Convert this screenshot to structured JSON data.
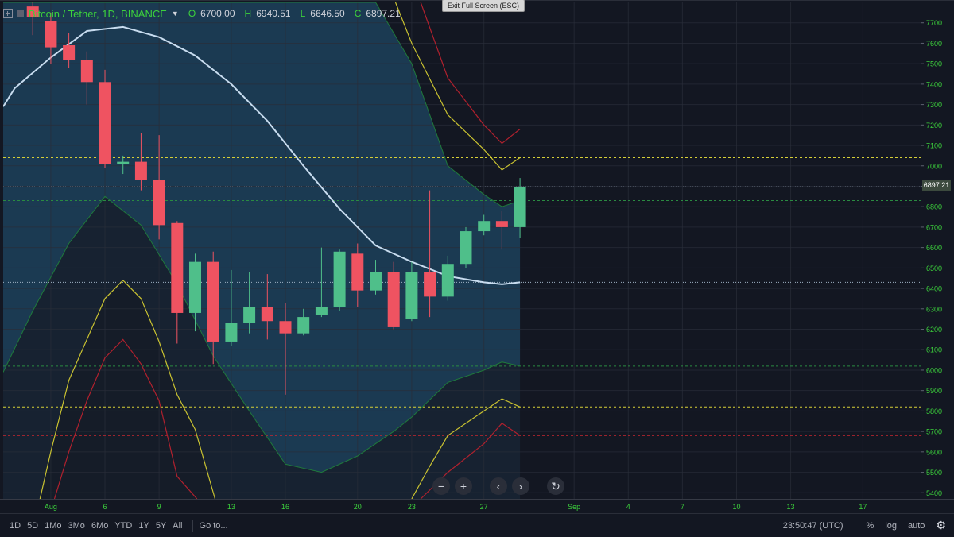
{
  "legend": {
    "symbol": "Bitcoin / Tether, 1D, BINANCE",
    "o_label": "O",
    "o_value": "6700.00",
    "h_label": "H",
    "h_value": "6940.51",
    "l_label": "L",
    "l_value": "6646.50",
    "c_label": "C",
    "c_value": "6897.21"
  },
  "esc_label": "Exit Full Screen (ESC)",
  "price_badge": "6897.21",
  "nav": {
    "zoom_out": "−",
    "zoom_in": "+",
    "back": "‹",
    "forward": "›",
    "reset": "↻"
  },
  "bottom": {
    "ranges": [
      "1D",
      "5D",
      "1Mo",
      "3Mo",
      "6Mo",
      "YTD",
      "1Y",
      "5Y",
      "All"
    ],
    "goto": "Go to...",
    "time": "23:50:47 (UTC)",
    "percent": "%",
    "log": "log",
    "auto": "auto"
  },
  "colors": {
    "background": "#131722",
    "band_fill": "#1f4763",
    "up": "#4fbf8a",
    "down": "#ef5361",
    "ma": "#c8dcef",
    "green_band": "#1f7a3b",
    "yellow_band": "#c9c231",
    "red_band": "#b0212e",
    "axis_text": "#3cd13c"
  },
  "chart_data": {
    "type": "candlestick",
    "title": "Bitcoin / Tether, 1D, BINANCE",
    "x_ticks": [
      {
        "day": 3,
        "label": "Aug"
      },
      {
        "day": 6,
        "label": "6"
      },
      {
        "day": 9,
        "label": "9"
      },
      {
        "day": 13,
        "label": "13"
      },
      {
        "day": 16,
        "label": "16"
      },
      {
        "day": 20,
        "label": "20"
      },
      {
        "day": 23,
        "label": "23"
      },
      {
        "day": 27,
        "label": "27"
      },
      {
        "day": 32,
        "label": "Sep"
      },
      {
        "day": 35,
        "label": "4"
      },
      {
        "day": 38,
        "label": "7"
      },
      {
        "day": 41,
        "label": "10"
      },
      {
        "day": 44,
        "label": "13"
      },
      {
        "day": 48,
        "label": "17"
      }
    ],
    "y_ticks": [
      5400,
      5500,
      5600,
      5700,
      5800,
      5900,
      6000,
      6100,
      6200,
      6300,
      6400,
      6500,
      6600,
      6700,
      6800,
      6900,
      7000,
      7100,
      7200,
      7300,
      7400,
      7500,
      7600,
      7700
    ],
    "ylim": [
      5370,
      7800
    ],
    "xlim": [
      0.36,
      51.2
    ],
    "candles": [
      {
        "day": 2,
        "o": 7780,
        "h": 7800,
        "l": 7640,
        "c": 7730
      },
      {
        "day": 3,
        "o": 7710,
        "h": 7750,
        "l": 7500,
        "c": 7580
      },
      {
        "day": 4,
        "o": 7590,
        "h": 7650,
        "l": 7480,
        "c": 7520
      },
      {
        "day": 5,
        "o": 7520,
        "h": 7560,
        "l": 7300,
        "c": 7410
      },
      {
        "day": 6,
        "o": 7410,
        "h": 7470,
        "l": 6990,
        "c": 7010
      },
      {
        "day": 7,
        "o": 7010,
        "h": 7050,
        "l": 6960,
        "c": 7020
      },
      {
        "day": 8,
        "o": 7020,
        "h": 7160,
        "l": 6880,
        "c": 6930
      },
      {
        "day": 9,
        "o": 6930,
        "h": 7150,
        "l": 6640,
        "c": 6710
      },
      {
        "day": 10,
        "o": 6720,
        "h": 6730,
        "l": 6130,
        "c": 6280
      },
      {
        "day": 11,
        "o": 6280,
        "h": 6570,
        "l": 6190,
        "c": 6530
      },
      {
        "day": 12,
        "o": 6530,
        "h": 6580,
        "l": 6030,
        "c": 6140
      },
      {
        "day": 13,
        "o": 6140,
        "h": 6490,
        "l": 6120,
        "c": 6230
      },
      {
        "day": 14,
        "o": 6230,
        "h": 6480,
        "l": 6180,
        "c": 6310
      },
      {
        "day": 15,
        "o": 6310,
        "h": 6470,
        "l": 6150,
        "c": 6240
      },
      {
        "day": 16,
        "o": 6240,
        "h": 6330,
        "l": 5880,
        "c": 6180
      },
      {
        "day": 17,
        "o": 6180,
        "h": 6300,
        "l": 6170,
        "c": 6260
      },
      {
        "day": 18,
        "o": 6270,
        "h": 6600,
        "l": 6260,
        "c": 6310
      },
      {
        "day": 19,
        "o": 6310,
        "h": 6590,
        "l": 6290,
        "c": 6580
      },
      {
        "day": 20,
        "o": 6570,
        "h": 6620,
        "l": 6310,
        "c": 6390
      },
      {
        "day": 21,
        "o": 6390,
        "h": 6540,
        "l": 6370,
        "c": 6480
      },
      {
        "day": 22,
        "o": 6480,
        "h": 6530,
        "l": 6200,
        "c": 6210
      },
      {
        "day": 23,
        "o": 6250,
        "h": 6530,
        "l": 6240,
        "c": 6480
      },
      {
        "day": 24,
        "o": 6480,
        "h": 6880,
        "l": 6260,
        "c": 6360
      },
      {
        "day": 25,
        "o": 6360,
        "h": 6560,
        "l": 6340,
        "c": 6520
      },
      {
        "day": 26,
        "o": 6520,
        "h": 6700,
        "l": 6500,
        "c": 6680
      },
      {
        "day": 27,
        "o": 6680,
        "h": 6760,
        "l": 6660,
        "c": 6730
      },
      {
        "day": 28,
        "o": 6730,
        "h": 6780,
        "l": 6590,
        "c": 6700
      },
      {
        "day": 29,
        "o": 6700,
        "h": 6940.51,
        "l": 6646.5,
        "c": 6897.21
      }
    ],
    "moving_average": [
      {
        "day": 0.36,
        "v": 7290
      },
      {
        "day": 1,
        "v": 7380
      },
      {
        "day": 3,
        "v": 7530
      },
      {
        "day": 5,
        "v": 7660
      },
      {
        "day": 7,
        "v": 7680
      },
      {
        "day": 9,
        "v": 7630
      },
      {
        "day": 11,
        "v": 7540
      },
      {
        "day": 13,
        "v": 7400
      },
      {
        "day": 15,
        "v": 7220
      },
      {
        "day": 17,
        "v": 7000
      },
      {
        "day": 19,
        "v": 6790
      },
      {
        "day": 21,
        "v": 6610
      },
      {
        "day": 23,
        "v": 6530
      },
      {
        "day": 25,
        "v": 6460
      },
      {
        "day": 27,
        "v": 6430
      },
      {
        "day": 28,
        "v": 6420
      },
      {
        "day": 29,
        "v": 6430
      }
    ],
    "band_upper": [
      {
        "day": 0.36,
        "v": 7800
      },
      {
        "day": 21,
        "v": 7800
      },
      {
        "day": 23,
        "v": 7500
      },
      {
        "day": 25,
        "v": 7000
      },
      {
        "day": 27,
        "v": 6860
      },
      {
        "day": 28,
        "v": 6800
      },
      {
        "day": 29,
        "v": 6830
      }
    ],
    "band_lower": [
      {
        "day": 0.36,
        "v": 5990
      },
      {
        "day": 2,
        "v": 6290
      },
      {
        "day": 4,
        "v": 6620
      },
      {
        "day": 6,
        "v": 6850
      },
      {
        "day": 8,
        "v": 6710
      },
      {
        "day": 10,
        "v": 6420
      },
      {
        "day": 12,
        "v": 6070
      },
      {
        "day": 14,
        "v": 5800
      },
      {
        "day": 16,
        "v": 5540
      },
      {
        "day": 18,
        "v": 5500
      },
      {
        "day": 20,
        "v": 5580
      },
      {
        "day": 22,
        "v": 5700
      },
      {
        "day": 23,
        "v": 5770
      },
      {
        "day": 25,
        "v": 5940
      },
      {
        "day": 27,
        "v": 6000
      },
      {
        "day": 28,
        "v": 6040
      },
      {
        "day": 29,
        "v": 6020
      }
    ],
    "yellow_upper": [
      {
        "day": 22.1,
        "v": 7800
      },
      {
        "day": 23,
        "v": 7600
      },
      {
        "day": 25,
        "v": 7250
      },
      {
        "day": 27,
        "v": 7080
      },
      {
        "day": 28,
        "v": 6980
      },
      {
        "day": 29,
        "v": 7040
      }
    ],
    "yellow_lower": [
      {
        "day": 2.4,
        "v": 5370
      },
      {
        "day": 3,
        "v": 5600
      },
      {
        "day": 4,
        "v": 5950
      },
      {
        "day": 6,
        "v": 6350
      },
      {
        "day": 7,
        "v": 6440
      },
      {
        "day": 8,
        "v": 6350
      },
      {
        "day": 9,
        "v": 6140
      },
      {
        "day": 10,
        "v": 5880
      },
      {
        "day": 11,
        "v": 5710
      },
      {
        "day": 12.1,
        "v": 5370
      }
    ],
    "yellow_lower_right": [
      {
        "day": 23,
        "v": 5370
      },
      {
        "day": 24,
        "v": 5530
      },
      {
        "day": 25,
        "v": 5680
      },
      {
        "day": 27,
        "v": 5800
      },
      {
        "day": 28,
        "v": 5860
      },
      {
        "day": 29,
        "v": 5820
      }
    ],
    "red_upper": [
      {
        "day": 23.5,
        "v": 7800
      },
      {
        "day": 25,
        "v": 7430
      },
      {
        "day": 27,
        "v": 7200
      },
      {
        "day": 28,
        "v": 7110
      },
      {
        "day": 29,
        "v": 7180
      }
    ],
    "red_lower": [
      {
        "day": 3.2,
        "v": 5370
      },
      {
        "day": 4,
        "v": 5600
      },
      {
        "day": 5,
        "v": 5850
      },
      {
        "day": 6,
        "v": 6060
      },
      {
        "day": 7,
        "v": 6150
      },
      {
        "day": 8,
        "v": 6030
      },
      {
        "day": 9,
        "v": 5850
      },
      {
        "day": 10,
        "v": 5480
      },
      {
        "day": 11.1,
        "v": 5370
      }
    ],
    "red_lower_right": [
      {
        "day": 23.5,
        "v": 5370
      },
      {
        "day": 25,
        "v": 5500
      },
      {
        "day": 27,
        "v": 5640
      },
      {
        "day": 28,
        "v": 5740
      },
      {
        "day": 29,
        "v": 5680
      }
    ],
    "hlines": [
      {
        "v": 7180,
        "color": "#c8262f",
        "style": "dashed"
      },
      {
        "v": 7040,
        "color": "#d6cf36",
        "style": "dashed"
      },
      {
        "v": 6897.21,
        "color": "#9fb2c4",
        "style": "dotted"
      },
      {
        "v": 6830,
        "color": "#2a8a41",
        "style": "dashed"
      },
      {
        "v": 6430,
        "color": "#9fb2c4",
        "style": "dotted"
      },
      {
        "v": 6020,
        "color": "#2a8a41",
        "style": "dashed"
      },
      {
        "v": 5820,
        "color": "#d6cf36",
        "style": "dashed"
      },
      {
        "v": 5680,
        "color": "#c8262f",
        "style": "dashed"
      }
    ]
  }
}
